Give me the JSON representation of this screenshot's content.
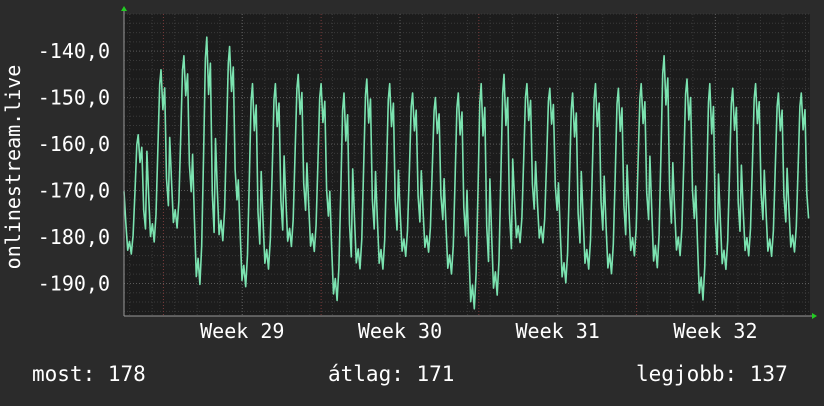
{
  "colors": {
    "background": "#2b2b2b",
    "plot_background": "#1c1c1c",
    "grid_major": "#5a5a5a",
    "grid_minor": "#3a3a3a",
    "week_divider": "#7a3a3a",
    "line": "#7be3b0",
    "axis_arrow": "#22cc22",
    "text": "#ffffff"
  },
  "stats": {
    "current": "most: 178",
    "average": "átlag: 171",
    "best": "legjobb: 137"
  },
  "chart_data": {
    "type": "line",
    "ylabel": "onlinestream.live",
    "ylim": [
      -197,
      -132
    ],
    "y_ticks": [
      {
        "value": -140,
        "label": "-140,0"
      },
      {
        "value": -150,
        "label": "-150,0"
      },
      {
        "value": -160,
        "label": "-160,0"
      },
      {
        "value": -170,
        "label": "-170,0"
      },
      {
        "value": -180,
        "label": "-180,0"
      },
      {
        "value": -190,
        "label": "-190,0"
      }
    ],
    "x_range_weeks": [
      28.25,
      32.6
    ],
    "x_ticks": [
      {
        "value": 29,
        "label": "Week 29"
      },
      {
        "value": 30,
        "label": "Week 30"
      },
      {
        "value": 31,
        "label": "Week 31"
      },
      {
        "value": 32,
        "label": "Week 32"
      }
    ],
    "grid": true,
    "series": [
      {
        "color": "#7be3b0",
        "x_start_week": 28.25,
        "x_step_week": 0.0714,
        "cycles": [
          {
            "peak": -158,
            "trough": -185
          },
          {
            "peak": -144,
            "trough": -183
          },
          {
            "peak": -141,
            "trough": -180
          },
          {
            "peak": -137,
            "trough": -193
          },
          {
            "peak": -139,
            "trough": -183
          },
          {
            "peak": -147,
            "trough": -193
          },
          {
            "peak": -147,
            "trough": -189
          },
          {
            "peak": -145,
            "trough": -184
          },
          {
            "peak": -147,
            "trough": -185
          },
          {
            "peak": -149,
            "trough": -196
          },
          {
            "peak": -146,
            "trough": -189
          },
          {
            "peak": -147,
            "trough": -189
          },
          {
            "peak": -149,
            "trough": -186
          },
          {
            "peak": -150,
            "trough": -185
          },
          {
            "peak": -149,
            "trough": -190
          },
          {
            "peak": -147,
            "trough": -198
          },
          {
            "peak": -145,
            "trough": -195
          },
          {
            "peak": -147,
            "trough": -183
          },
          {
            "peak": -148,
            "trough": -183
          },
          {
            "peak": -149,
            "trough": -192
          },
          {
            "peak": -147,
            "trough": -189
          },
          {
            "peak": -148,
            "trough": -190
          },
          {
            "peak": -147,
            "trough": -186
          },
          {
            "peak": -141,
            "trough": -189
          },
          {
            "peak": -146,
            "trough": -186
          },
          {
            "peak": -147,
            "trough": -196
          },
          {
            "peak": -148,
            "trough": -189
          },
          {
            "peak": -147,
            "trough": -186
          },
          {
            "peak": -149,
            "trough": -186
          },
          {
            "peak": -149,
            "trough": -185
          }
        ]
      }
    ]
  }
}
